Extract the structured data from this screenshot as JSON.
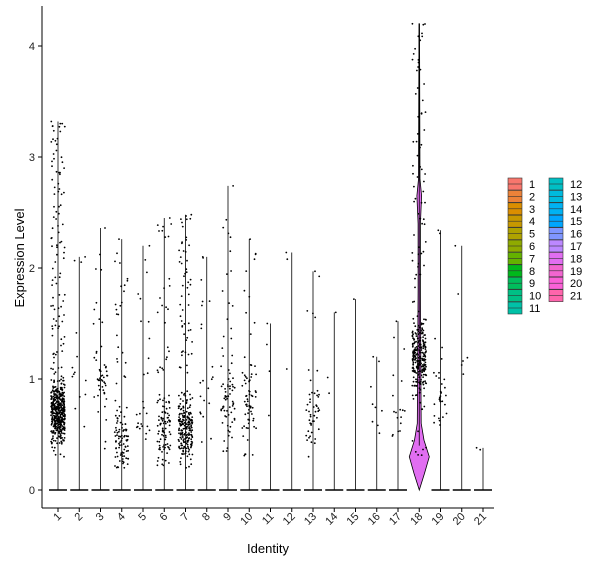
{
  "chart_data": {
    "type": "violin",
    "xlabel": "Identity",
    "ylabel": "Expression Level",
    "categories": [
      "1",
      "2",
      "3",
      "4",
      "5",
      "6",
      "7",
      "8",
      "9",
      "10",
      "11",
      "12",
      "13",
      "14",
      "15",
      "16",
      "17",
      "18",
      "19",
      "20",
      "21"
    ],
    "ylim": [
      -0.2,
      4.4
    ],
    "yticks": [
      0,
      1,
      2,
      3,
      4
    ],
    "grid": false,
    "legend": "right",
    "colors": [
      "#F8766D",
      "#EC8239",
      "#DB8E00",
      "#C79800",
      "#AEA200",
      "#8FAA00",
      "#64B200",
      "#00B81B",
      "#00BD5C",
      "#00C085",
      "#00C1A7",
      "#00BFC4",
      "#00BADE",
      "#00B2F3",
      "#00A6FF",
      "#7F96FF",
      "#BC88FF",
      "#E16EF1",
      "#F265D0",
      "#FB61D7",
      "#FF65AC"
    ],
    "groups": [
      {
        "id": "1",
        "max": 3.32,
        "n": 520,
        "nonzero_min": 0.3,
        "center": 0.7
      },
      {
        "id": "2",
        "max": 2.1,
        "n": 14,
        "nonzero_min": 0.2,
        "center": 1.0
      },
      {
        "id": "3",
        "max": 2.36,
        "n": 50,
        "nonzero_min": 0.3,
        "center": 1.0
      },
      {
        "id": "4",
        "max": 2.26,
        "n": 110,
        "nonzero_min": 0.2,
        "center": 0.45
      },
      {
        "id": "5",
        "max": 2.2,
        "n": 26,
        "nonzero_min": 0.3,
        "center": 0.6
      },
      {
        "id": "6",
        "max": 2.45,
        "n": 110,
        "nonzero_min": 0.2,
        "center": 0.55
      },
      {
        "id": "7",
        "max": 2.48,
        "n": 260,
        "nonzero_min": 0.2,
        "center": 0.55
      },
      {
        "id": "8",
        "max": 2.1,
        "n": 22,
        "nonzero_min": 0.3,
        "center": 0.8
      },
      {
        "id": "9",
        "max": 2.74,
        "n": 80,
        "nonzero_min": 0.3,
        "center": 0.8
      },
      {
        "id": "10",
        "max": 2.26,
        "n": 72,
        "nonzero_min": 0.3,
        "center": 0.75
      },
      {
        "id": "11",
        "max": 1.5,
        "n": 4,
        "nonzero_min": 0.2,
        "center": 0.9
      },
      {
        "id": "12",
        "max": 2.14,
        "n": 3,
        "nonzero_min": 0.5,
        "center": 1.2
      },
      {
        "id": "13",
        "max": 1.97,
        "n": 48,
        "nonzero_min": 0.3,
        "center": 0.7
      },
      {
        "id": "14",
        "max": 1.6,
        "n": 3,
        "nonzero_min": 0.5,
        "center": 1.0
      },
      {
        "id": "15",
        "max": 1.72,
        "n": 1,
        "nonzero_min": 1.7,
        "center": 1.7
      },
      {
        "id": "16",
        "max": 1.2,
        "n": 9,
        "nonzero_min": 0.4,
        "center": 0.7
      },
      {
        "id": "17",
        "max": 1.52,
        "n": 18,
        "nonzero_min": 0.3,
        "center": 0.7
      },
      {
        "id": "18",
        "max": 4.2,
        "n": 330,
        "nonzero_min": 0.3,
        "center": 1.2
      },
      {
        "id": "19",
        "max": 2.34,
        "n": 30,
        "nonzero_min": 0.3,
        "center": 0.9
      },
      {
        "id": "20",
        "max": 2.2,
        "n": 6,
        "nonzero_min": 0.4,
        "center": 1.0
      },
      {
        "id": "21",
        "max": 0.38,
        "n": 2,
        "nonzero_min": 0.36,
        "center": 0.37
      }
    ],
    "violin_profile_18": [
      [
        0,
        0.0
      ],
      [
        0.15,
        0.22
      ],
      [
        0.3,
        0.42
      ],
      [
        0.45,
        0.2
      ],
      [
        0.6,
        0.08
      ],
      [
        1.0,
        0.07
      ],
      [
        1.8,
        0.05
      ],
      [
        2.4,
        0.05
      ],
      [
        2.65,
        0.1
      ],
      [
        2.8,
        0.03
      ],
      [
        4.2,
        0.01
      ]
    ]
  }
}
